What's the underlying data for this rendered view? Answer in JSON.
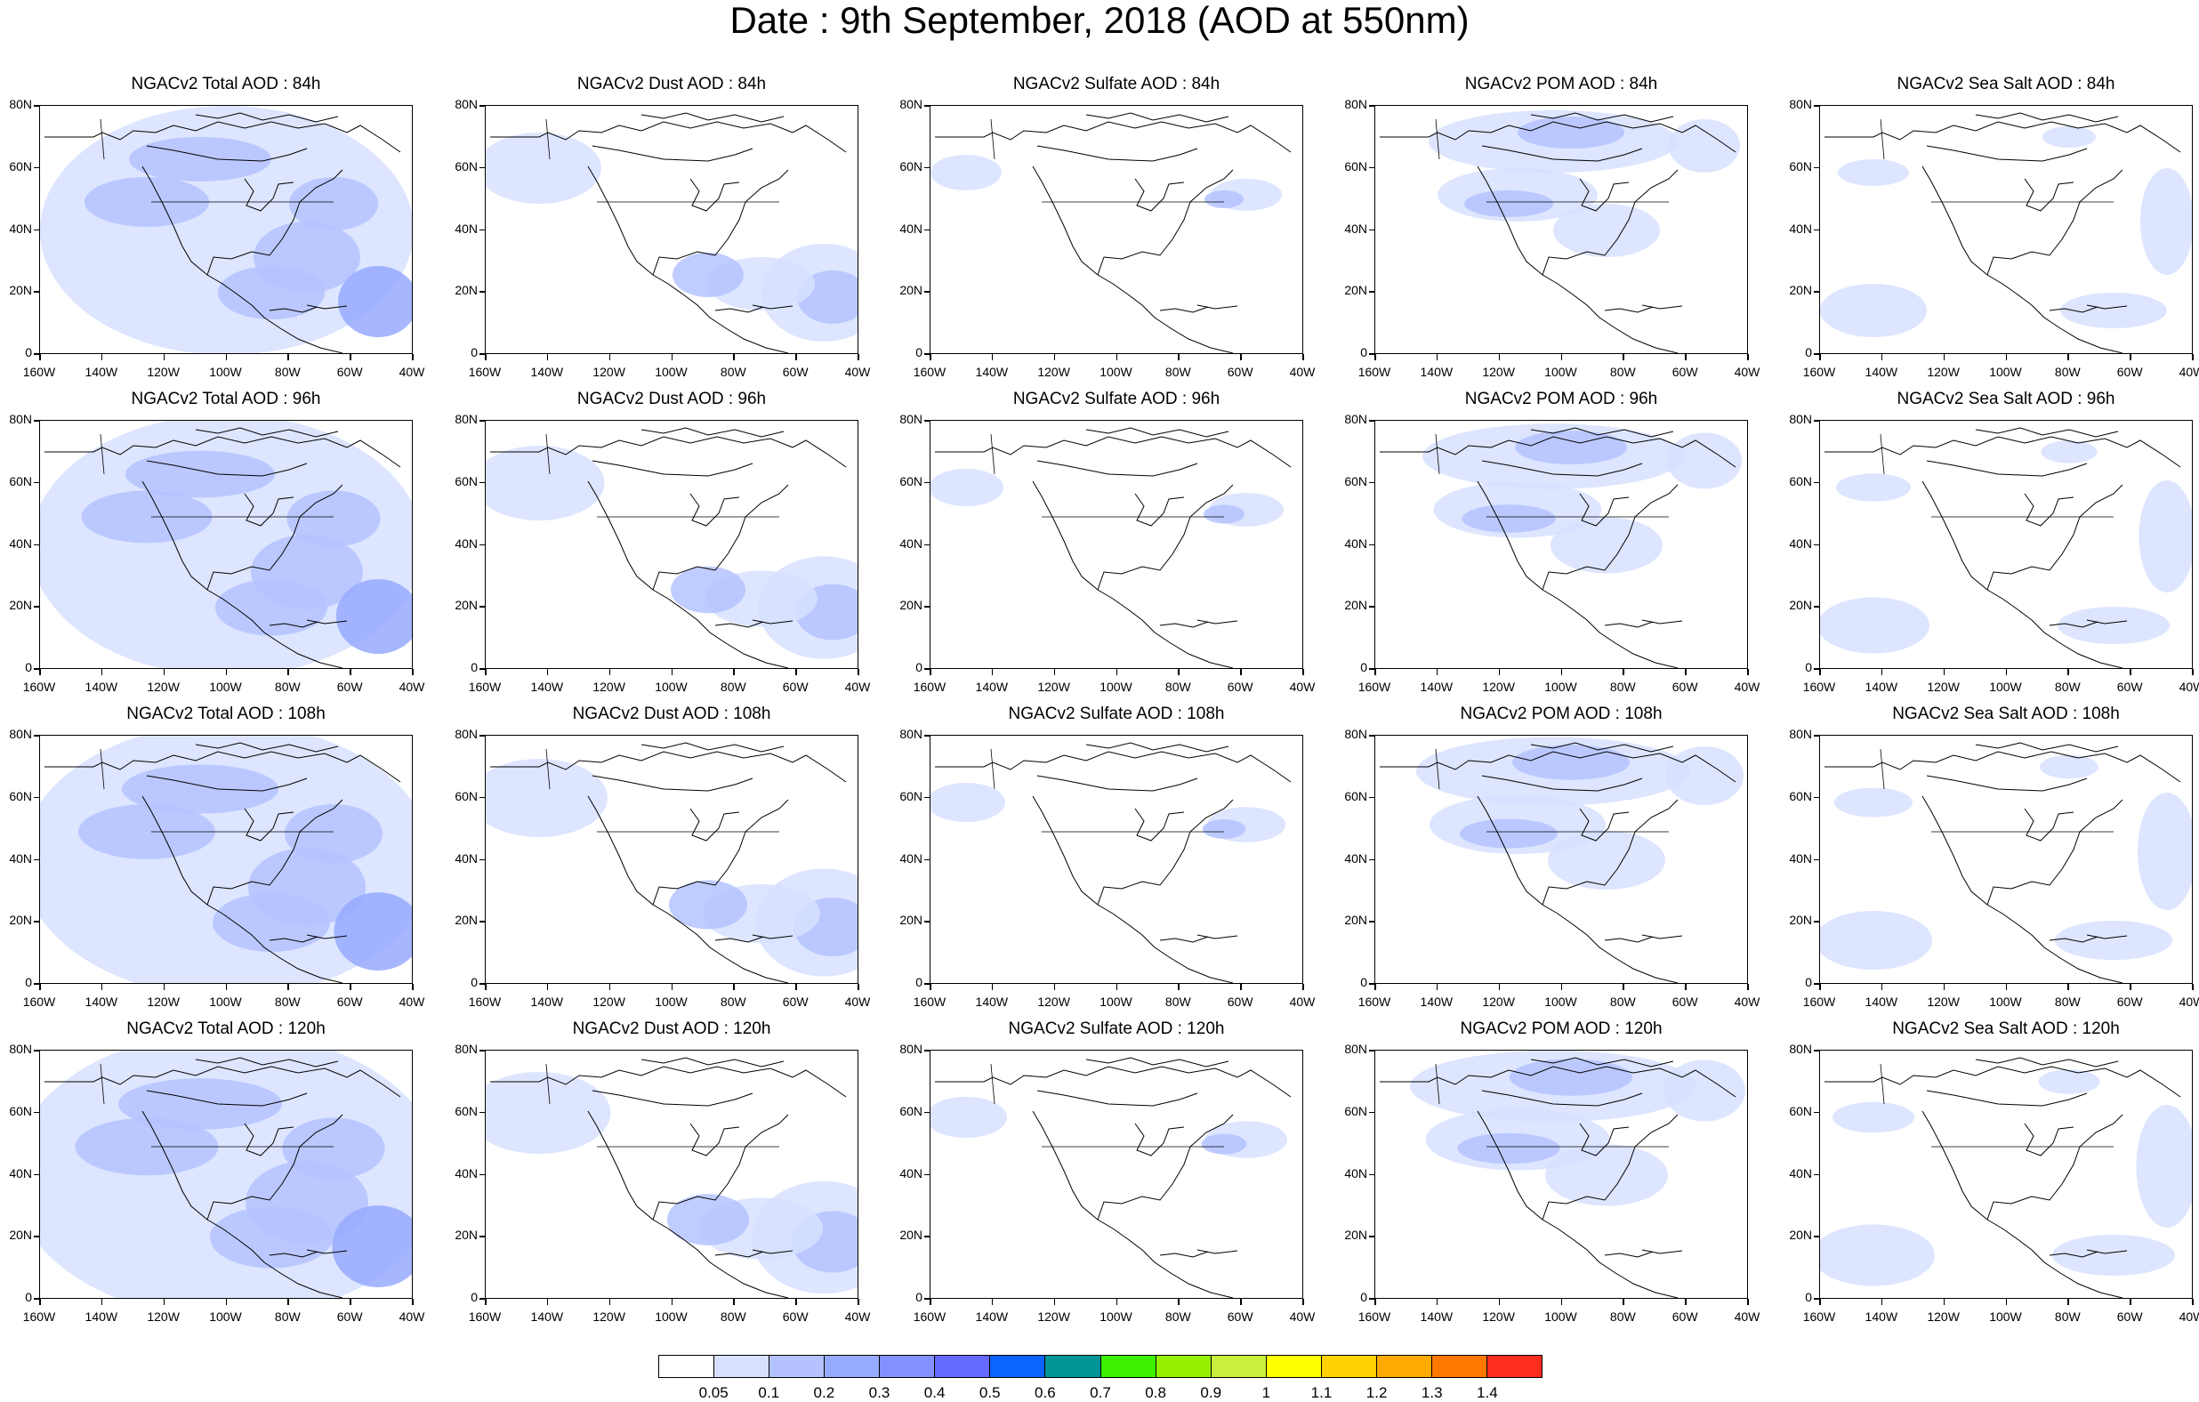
{
  "title": "Date : 9th September, 2018 (AOD at 550nm)",
  "lat_labels": [
    "80N",
    "60N",
    "40N",
    "20N",
    "0"
  ],
  "lon_labels": [
    "160W",
    "140W",
    "120W",
    "100W",
    "80W",
    "60W",
    "40W"
  ],
  "panels": [
    [
      "NGACv2 Total AOD : 84h",
      "NGACv2 Dust AOD : 84h",
      "NGACv2 Sulfate AOD : 84h",
      "NGACv2 POM AOD : 84h",
      "NGACv2 Sea Salt AOD : 84h"
    ],
    [
      "NGACv2 Total AOD : 96h",
      "NGACv2 Dust AOD : 96h",
      "NGACv2 Sulfate AOD : 96h",
      "NGACv2 POM AOD : 96h",
      "NGACv2 Sea Salt AOD : 96h"
    ],
    [
      "NGACv2 Total AOD : 108h",
      "NGACv2 Dust AOD : 108h",
      "NGACv2 Sulfate AOD : 108h",
      "NGACv2 POM AOD : 108h",
      "NGACv2 Sea Salt AOD : 108h"
    ],
    [
      "NGACv2 Total AOD : 120h",
      "NGACv2 Dust AOD : 120h",
      "NGACv2 Sulfate AOD : 120h",
      "NGACv2 POM AOD : 120h",
      "NGACv2 Sea Salt  AOD : 120h"
    ]
  ],
  "colorbar": {
    "colors": [
      "#ffffff",
      "#d7e1ff",
      "#b4c3ff",
      "#96aaff",
      "#8291ff",
      "#6469ff",
      "#0a64ff",
      "#009696",
      "#3cf000",
      "#96f000",
      "#c8f03c",
      "#ffff00",
      "#ffd200",
      "#ffaa00",
      "#ff7800",
      "#ff2d1e"
    ],
    "labels": [
      "0.05",
      "0.1",
      "0.2",
      "0.3",
      "0.4",
      "0.5",
      "0.6",
      "0.7",
      "0.8",
      "0.9",
      "1",
      "1.1",
      "1.2",
      "1.3",
      "1.4"
    ]
  }
}
